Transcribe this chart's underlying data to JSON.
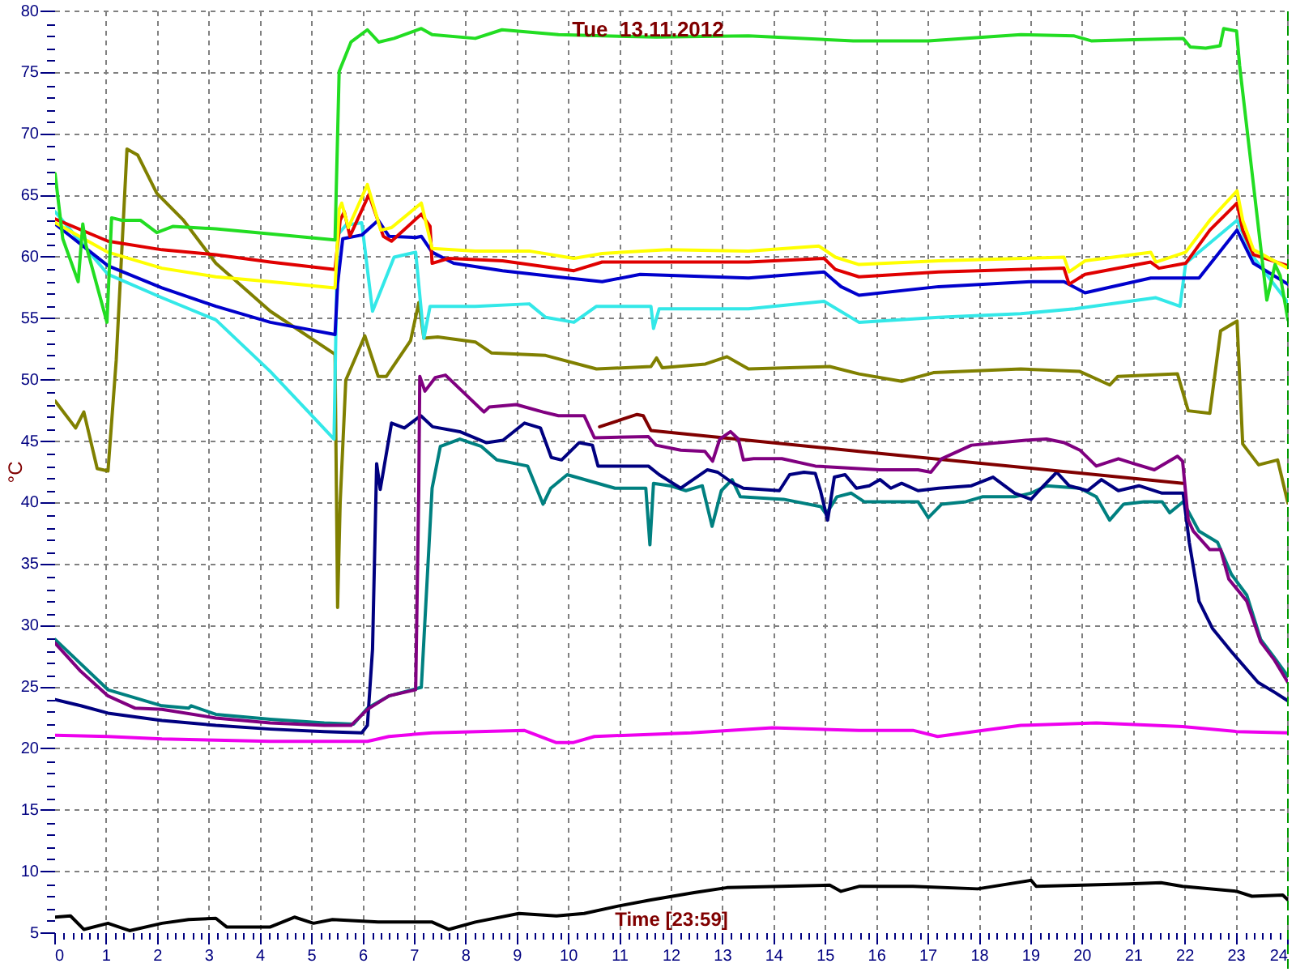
{
  "chart_data": {
    "type": "line",
    "title": "Tue  13.11.2012",
    "xlabel": "Time [23:59]",
    "ylabel": "°C",
    "xlim": [
      0,
      24
    ],
    "ylim": [
      5,
      80
    ],
    "xticks": [
      0,
      {
        "value": 0.1667,
        "label": null
      },
      {
        "value": 0.3333,
        "label": null
      },
      {
        "value": 0.5,
        "label": null
      },
      {
        "value": 0.6667,
        "label": null
      },
      {
        "value": 0.8333,
        "label": null
      },
      1,
      {
        "value": 1.1667,
        "label": null
      },
      {
        "value": 1.3333,
        "label": null
      },
      {
        "value": 1.5,
        "label": null
      },
      {
        "value": 1.6667,
        "label": null
      },
      {
        "value": 1.8333,
        "label": null
      },
      2,
      {
        "value": 2.1667,
        "label": null
      },
      {
        "value": 2.3333,
        "label": null
      },
      {
        "value": 2.5,
        "label": null
      },
      {
        "value": 2.6667,
        "label": null
      },
      {
        "value": 2.8333,
        "label": null
      },
      3,
      {
        "value": 3.1667,
        "label": null
      },
      {
        "value": 3.3333,
        "label": null
      },
      {
        "value": 3.5,
        "label": null
      },
      {
        "value": 3.6667,
        "label": null
      },
      {
        "value": 3.8333,
        "label": null
      },
      4,
      {
        "value": 4.1667,
        "label": null
      },
      {
        "value": 4.3333,
        "label": null
      },
      {
        "value": 4.5,
        "label": null
      },
      {
        "value": 4.6667,
        "label": null
      },
      {
        "value": 4.8333,
        "label": null
      },
      5,
      {
        "value": 5.1667,
        "label": null
      },
      {
        "value": 5.3333,
        "label": null
      },
      {
        "value": 5.5,
        "label": null
      },
      {
        "value": 5.6667,
        "label": null
      },
      {
        "value": 5.8333,
        "label": null
      },
      6,
      {
        "value": 6.1667,
        "label": null
      },
      {
        "value": 6.3333,
        "label": null
      },
      {
        "value": 6.5,
        "label": null
      },
      {
        "value": 6.6667,
        "label": null
      },
      {
        "value": 6.8333,
        "label": null
      },
      7,
      {
        "value": 7.1667,
        "label": null
      },
      {
        "value": 7.3333,
        "label": null
      },
      {
        "value": 7.5,
        "label": null
      },
      {
        "value": 7.6667,
        "label": null
      },
      {
        "value": 7.8333,
        "label": null
      },
      8,
      {
        "value": 8.1667,
        "label": null
      },
      {
        "value": 8.3333,
        "label": null
      },
      {
        "value": 8.5,
        "label": null
      },
      {
        "value": 8.6667,
        "label": null
      },
      {
        "value": 8.8333,
        "label": null
      },
      9,
      {
        "value": 9.1667,
        "label": null
      },
      {
        "value": 9.3333,
        "label": null
      },
      {
        "value": 9.5,
        "label": null
      },
      {
        "value": 9.6667,
        "label": null
      },
      {
        "value": 9.8333,
        "label": null
      },
      10,
      {
        "value": 10.1667,
        "label": null
      },
      {
        "value": 10.3333,
        "label": null
      },
      {
        "value": 10.5,
        "label": null
      },
      {
        "value": 10.6667,
        "label": null
      },
      {
        "value": 10.8333,
        "label": null
      },
      11,
      {
        "value": 11.1667,
        "label": null
      },
      {
        "value": 11.3333,
        "label": null
      },
      {
        "value": 11.5,
        "label": null
      },
      {
        "value": 11.6667,
        "label": null
      },
      {
        "value": 11.8333,
        "label": null
      },
      12,
      {
        "value": 12.1667,
        "label": null
      },
      {
        "value": 12.3333,
        "label": null
      },
      {
        "value": 12.5,
        "label": null
      },
      {
        "value": 12.6667,
        "label": null
      },
      {
        "value": 12.8333,
        "label": null
      },
      13,
      {
        "value": 13.1667,
        "label": null
      },
      {
        "value": 13.3333,
        "label": null
      },
      {
        "value": 13.5,
        "label": null
      },
      {
        "value": 13.6667,
        "label": null
      },
      {
        "value": 13.8333,
        "label": null
      },
      14,
      {
        "value": 14.1667,
        "label": null
      },
      {
        "value": 14.3333,
        "label": null
      },
      {
        "value": 14.5,
        "label": null
      },
      {
        "value": 14.6667,
        "label": null
      },
      {
        "value": 14.8333,
        "label": null
      },
      15,
      {
        "value": 15.1667,
        "label": null
      },
      {
        "value": 15.3333,
        "label": null
      },
      {
        "value": 15.5,
        "label": null
      },
      {
        "value": 15.6667,
        "label": null
      },
      {
        "value": 15.8333,
        "label": null
      },
      16,
      {
        "value": 16.1667,
        "label": null
      },
      {
        "value": 16.3333,
        "label": null
      },
      {
        "value": 16.5,
        "label": null
      },
      {
        "value": 16.6667,
        "label": null
      },
      {
        "value": 16.8333,
        "label": null
      },
      17,
      {
        "value": 17.1667,
        "label": null
      },
      {
        "value": 17.3333,
        "label": null
      },
      {
        "value": 17.5,
        "label": null
      },
      {
        "value": 17.6667,
        "label": null
      },
      {
        "value": 17.8333,
        "label": null
      },
      18,
      {
        "value": 18.1667,
        "label": null
      },
      {
        "value": 18.3333,
        "label": null
      },
      {
        "value": 18.5,
        "label": null
      },
      {
        "value": 18.6667,
        "label": null
      },
      {
        "value": 18.8333,
        "label": null
      },
      19,
      {
        "value": 19.1667,
        "label": null
      },
      {
        "value": 19.3333,
        "label": null
      },
      {
        "value": 19.5,
        "label": null
      },
      {
        "value": 19.6667,
        "label": null
      },
      {
        "value": 19.8333,
        "label": null
      },
      20,
      {
        "value": 20.1667,
        "label": null
      },
      {
        "value": 20.3333,
        "label": null
      },
      {
        "value": 20.5,
        "label": null
      },
      {
        "value": 20.6667,
        "label": null
      },
      {
        "value": 20.8333,
        "label": null
      },
      21,
      {
        "value": 21.1667,
        "label": null
      },
      {
        "value": 21.3333,
        "label": null
      },
      {
        "value": 21.5,
        "label": null
      },
      {
        "value": 21.6667,
        "label": null
      },
      {
        "value": 21.8333,
        "label": null
      },
      22,
      {
        "value": 22.1667,
        "label": null
      },
      {
        "value": 22.3333,
        "label": null
      },
      {
        "value": 22.5,
        "label": null
      },
      {
        "value": 22.6667,
        "label": null
      },
      {
        "value": 22.8333,
        "label": null
      },
      23,
      {
        "value": 23.1667,
        "label": null
      },
      {
        "value": 23.3333,
        "label": null
      },
      {
        "value": 23.5,
        "label": null
      },
      {
        "value": 23.6667,
        "label": null
      },
      {
        "value": 23.8333,
        "label": null
      },
      24
    ],
    "yticks": [
      5,
      {
        "value": 6,
        "label": null
      },
      {
        "value": 7,
        "label": null
      },
      {
        "value": 8,
        "label": null
      },
      {
        "value": 9,
        "label": null
      },
      10,
      {
        "value": 11,
        "label": null
      },
      {
        "value": 12,
        "label": null
      },
      {
        "value": 13,
        "label": null
      },
      {
        "value": 14,
        "label": null
      },
      15,
      {
        "value": 16,
        "label": null
      },
      {
        "value": 17,
        "label": null
      },
      {
        "value": 18,
        "label": null
      },
      {
        "value": 19,
        "label": null
      },
      20,
      {
        "value": 21,
        "label": null
      },
      {
        "value": 22,
        "label": null
      },
      {
        "value": 23,
        "label": null
      },
      {
        "value": 24,
        "label": null
      },
      25,
      {
        "value": 26,
        "label": null
      },
      {
        "value": 27,
        "label": null
      },
      {
        "value": 28,
        "label": null
      },
      {
        "value": 29,
        "label": null
      },
      30,
      {
        "value": 31,
        "label": null
      },
      {
        "value": 32,
        "label": null
      },
      {
        "value": 33,
        "label": null
      },
      {
        "value": 34,
        "label": null
      },
      35,
      {
        "value": 36,
        "label": null
      },
      {
        "value": 37,
        "label": null
      },
      {
        "value": 38,
        "label": null
      },
      {
        "value": 39,
        "label": null
      },
      40,
      {
        "value": 41,
        "label": null
      },
      {
        "value": 42,
        "label": null
      },
      {
        "value": 43,
        "label": null
      },
      {
        "value": 44,
        "label": null
      },
      45,
      {
        "value": 46,
        "label": null
      },
      {
        "value": 47,
        "label": null
      },
      {
        "value": 48,
        "label": null
      },
      {
        "value": 49,
        "label": null
      },
      50,
      {
        "value": 51,
        "label": null
      },
      {
        "value": 52,
        "label": null
      },
      {
        "value": 53,
        "label": null
      },
      {
        "value": 54,
        "label": null
      },
      55,
      {
        "value": 56,
        "label": null
      },
      {
        "value": 57,
        "label": null
      },
      {
        "value": 58,
        "label": null
      },
      {
        "value": 59,
        "label": null
      },
      60,
      {
        "value": 61,
        "label": null
      },
      {
        "value": 62,
        "label": null
      },
      {
        "value": 63,
        "label": null
      },
      {
        "value": 64,
        "label": null
      },
      65,
      {
        "value": 66,
        "label": null
      },
      {
        "value": 67,
        "label": null
      },
      {
        "value": 68,
        "label": null
      },
      {
        "value": 69,
        "label": null
      },
      70,
      {
        "value": 71,
        "label": null
      },
      {
        "value": 72,
        "label": null
      },
      {
        "value": 73,
        "label": null
      },
      {
        "value": 74,
        "label": null
      },
      75,
      {
        "value": 76,
        "label": null
      },
      {
        "value": 77,
        "label": null
      },
      {
        "value": 78,
        "label": null
      },
      {
        "value": 79,
        "label": null
      },
      80
    ],
    "grid": true,
    "legend": false,
    "marker": "none",
    "line_style": "solid",
    "ref_lines": [
      {
        "axis": "x",
        "value": 24,
        "color": "#009900",
        "line_style": "dashed"
      }
    ],
    "series": [
      {
        "color": "#22dd22",
        "x": [
          0,
          0.15,
          0.45,
          0.54,
          0.6,
          1.01,
          1.1,
          1.3,
          1.66,
          1.98,
          2.29,
          3.13,
          4.19,
          5.45,
          5.53,
          5.76,
          6.08,
          6.3,
          6.6,
          7.13,
          7.34,
          8.18,
          8.7,
          9.8,
          11.7,
          13.5,
          15.54,
          17.0,
          18.8,
          19.84,
          20.17,
          21.0,
          21.96,
          22.1,
          22.4,
          22.68,
          22.75,
          23.0,
          23.06,
          23.59,
          23.75,
          23.85,
          24
        ],
        "values": [
          66.8,
          61.5,
          58.0,
          62.7,
          61.0,
          54.7,
          63.2,
          63.0,
          63.0,
          62.0,
          62.5,
          62.3,
          61.9,
          61.4,
          75.1,
          77.5,
          78.5,
          77.5,
          77.8,
          78.6,
          78.1,
          77.8,
          78.5,
          78.1,
          77.9,
          78.0,
          77.6,
          77.6,
          78.1,
          78.0,
          77.6,
          77.7,
          77.8,
          77.1,
          77.0,
          77.2,
          78.6,
          78.4,
          75.6,
          56.5,
          59.4,
          58.5,
          54.9
        ]
      },
      {
        "color": "#ffff00",
        "x": [
          0,
          1.03,
          2.08,
          3.13,
          4.19,
          5.45,
          5.53,
          5.58,
          5.71,
          6.08,
          6.34,
          6.55,
          7.13,
          7.34,
          8.18,
          9.23,
          10.1,
          10.65,
          11.92,
          13.5,
          14.87,
          15.19,
          15.65,
          17.2,
          19.64,
          19.74,
          20.05,
          21.33,
          21.43,
          22.01,
          22.48,
          23.01,
          23.12,
          23.33,
          24
        ],
        "values": [
          62.8,
          60.4,
          59.1,
          58.4,
          58.0,
          57.5,
          63.9,
          64.4,
          62.4,
          65.9,
          62.2,
          62.4,
          64.4,
          60.7,
          60.5,
          60.5,
          59.9,
          60.3,
          60.6,
          60.5,
          60.9,
          60.0,
          59.4,
          59.7,
          60.0,
          58.8,
          59.7,
          60.4,
          59.6,
          60.4,
          63.0,
          65.4,
          63.0,
          60.6,
          59.1
        ]
      },
      {
        "color": "#e00000",
        "x": [
          0,
          1.03,
          2.08,
          3.13,
          4.19,
          5.45,
          5.55,
          5.63,
          5.74,
          6.11,
          6.39,
          6.55,
          7.13,
          7.3,
          7.34,
          7.66,
          8.71,
          10.1,
          10.65,
          11.92,
          13.5,
          14.97,
          15.19,
          15.65,
          17.2,
          19.64,
          19.74,
          20.05,
          21.33,
          21.49,
          22.01,
          22.48,
          23.01,
          23.12,
          23.33,
          24
        ],
        "values": [
          63.1,
          61.3,
          60.6,
          60.2,
          59.6,
          59.0,
          63.0,
          63.7,
          61.7,
          65.1,
          61.7,
          61.3,
          63.5,
          62.5,
          59.5,
          59.9,
          59.7,
          58.9,
          59.6,
          59.6,
          59.6,
          59.9,
          59.0,
          58.4,
          58.8,
          59.1,
          57.8,
          58.6,
          59.6,
          59.1,
          59.5,
          62.2,
          64.4,
          62.2,
          60.2,
          59.3
        ]
      },
      {
        "color": "#0000cc",
        "x": [
          0,
          1.03,
          2.08,
          3.13,
          4.19,
          5.45,
          5.5,
          5.6,
          5.97,
          6.29,
          6.5,
          7.02,
          7.13,
          7.34,
          7.76,
          8.71,
          9.76,
          10.65,
          11.39,
          13.5,
          14.97,
          15.3,
          15.65,
          17.2,
          19.0,
          19.64,
          20.05,
          21.33,
          22.27,
          23.01,
          23.33,
          24
        ],
        "values": [
          62.7,
          59.3,
          57.5,
          56.0,
          54.7,
          53.7,
          57.8,
          61.5,
          61.8,
          63.0,
          61.7,
          61.6,
          61.7,
          60.4,
          59.5,
          58.9,
          58.4,
          58.0,
          58.6,
          58.3,
          58.8,
          57.6,
          56.9,
          57.6,
          58.0,
          58.0,
          57.1,
          58.3,
          58.3,
          62.2,
          59.5,
          57.8
        ]
      },
      {
        "color": "#33e8e8",
        "x": [
          0,
          1.03,
          2.08,
          3.13,
          4.19,
          5.43,
          5.5,
          5.66,
          5.97,
          6.18,
          6.6,
          7.02,
          7.18,
          7.3,
          7.45,
          8.18,
          9.23,
          9.55,
          10.1,
          10.54,
          11.6,
          11.65,
          11.76,
          13.5,
          14.97,
          15.65,
          17.2,
          18.8,
          19.85,
          21.43,
          21.9,
          22.01,
          23.01,
          23.33,
          24
        ],
        "values": [
          63.7,
          58.6,
          56.7,
          54.9,
          50.7,
          45.2,
          61.8,
          62.6,
          62.8,
          55.6,
          60.0,
          60.4,
          53.4,
          56.0,
          56.0,
          56.0,
          56.2,
          55.1,
          54.7,
          56.0,
          56.0,
          54.2,
          55.8,
          55.8,
          56.4,
          54.7,
          55.1,
          55.4,
          55.8,
          56.7,
          56.0,
          59.5,
          63.0,
          60.0,
          56.3
        ]
      },
      {
        "color": "#808000",
        "x": [
          0,
          0.4,
          0.56,
          0.82,
          1.03,
          1.19,
          1.4,
          1.61,
          1.98,
          2.5,
          3.13,
          4.19,
          5.45,
          5.5,
          5.55,
          5.66,
          6.03,
          6.29,
          6.45,
          6.92,
          7.08,
          7.18,
          7.45,
          8.18,
          8.5,
          9.55,
          10.54,
          11.6,
          11.71,
          11.82,
          12.66,
          13.08,
          13.5,
          15.08,
          15.65,
          16.48,
          17.1,
          18.8,
          19.95,
          20.53,
          20.69,
          21.85,
          22.06,
          22.48,
          22.69,
          23.01,
          23.12,
          23.43,
          23.8,
          24
        ],
        "values": [
          48.3,
          46.1,
          47.4,
          42.8,
          42.6,
          51.6,
          68.8,
          68.3,
          65.2,
          63.0,
          59.5,
          55.6,
          52.1,
          31.5,
          40.0,
          50.0,
          53.6,
          50.3,
          50.3,
          53.2,
          56.3,
          53.4,
          53.5,
          53.1,
          52.2,
          52.0,
          50.9,
          51.1,
          51.8,
          51.0,
          51.3,
          51.9,
          50.9,
          51.1,
          50.5,
          49.9,
          50.6,
          50.9,
          50.7,
          49.6,
          50.3,
          50.5,
          47.5,
          47.3,
          54.0,
          54.8,
          44.8,
          43.1,
          43.5,
          40.0
        ]
      },
      {
        "color": "#800080",
        "x": [
          0,
          0.5,
          1.03,
          1.56,
          2.08,
          3.13,
          4.19,
          5.24,
          5.76,
          6.08,
          6.5,
          7.02,
          7.08,
          7.1,
          7.2,
          7.4,
          7.6,
          8.35,
          8.45,
          8.98,
          9.5,
          9.8,
          10.3,
          10.5,
          11.55,
          11.7,
          12.18,
          12.65,
          12.8,
          12.94,
          13.15,
          13.3,
          13.4,
          13.6,
          14.15,
          14.8,
          16.05,
          16.8,
          17.05,
          17.26,
          17.84,
          18.9,
          19.3,
          19.65,
          19.95,
          20.27,
          20.7,
          21.0,
          21.4,
          21.85,
          21.95,
          22.06,
          22.16,
          22.48,
          22.69,
          22.85,
          23.2,
          23.47,
          23.74,
          24
        ],
        "values": [
          28.6,
          26.3,
          24.3,
          23.3,
          23.2,
          22.5,
          22.1,
          21.9,
          21.9,
          23.2,
          24.3,
          24.8,
          41.0,
          50.3,
          49.1,
          50.2,
          50.4,
          47.4,
          47.8,
          48.0,
          47.4,
          47.1,
          47.1,
          45.3,
          45.4,
          44.7,
          44.3,
          44.2,
          43.4,
          45.2,
          45.8,
          45.2,
          43.5,
          43.6,
          43.6,
          43.0,
          42.7,
          42.7,
          42.5,
          43.6,
          44.7,
          45.1,
          45.2,
          44.9,
          44.3,
          43.0,
          43.6,
          43.2,
          42.7,
          43.8,
          43.4,
          38.6,
          37.7,
          36.2,
          36.2,
          33.8,
          32.0,
          28.7,
          27.2,
          25.4
        ]
      },
      {
        "color": "#800000",
        "x": [
          10.6,
          11.33,
          11.45,
          11.6,
          15.65,
          21.96
        ],
        "values": [
          46.2,
          47.2,
          47.1,
          45.9,
          44.2,
          41.6
        ]
      },
      {
        "color": "#000080",
        "x": [
          0,
          0.5,
          1.03,
          2.08,
          3.13,
          4.19,
          5.24,
          5.97,
          6.08,
          6.18,
          6.26,
          6.33,
          6.55,
          6.8,
          7.12,
          7.35,
          7.88,
          8.4,
          8.72,
          9.14,
          9.45,
          9.66,
          9.86,
          10.2,
          10.46,
          10.57,
          11.03,
          11.55,
          11.76,
          12.18,
          12.7,
          12.9,
          13.2,
          13.4,
          14.1,
          14.3,
          14.58,
          14.8,
          14.9,
          15.04,
          15.17,
          15.38,
          15.6,
          15.85,
          16.06,
          16.27,
          16.48,
          16.8,
          17.2,
          17.84,
          18.26,
          18.68,
          19.0,
          19.2,
          19.5,
          19.74,
          20.1,
          20.37,
          20.7,
          21.1,
          21.55,
          21.96,
          22.08,
          22.27,
          22.53,
          22.9,
          23.42,
          23.74,
          24
        ],
        "values": [
          24.0,
          23.5,
          22.9,
          22.3,
          21.9,
          21.6,
          21.4,
          21.3,
          21.9,
          28.1,
          43.2,
          41.1,
          46.5,
          46.1,
          47.1,
          46.2,
          45.8,
          44.9,
          45.1,
          46.5,
          46.1,
          43.7,
          43.5,
          44.9,
          44.7,
          43.0,
          43.0,
          43.0,
          42.3,
          41.2,
          42.7,
          42.5,
          41.6,
          41.2,
          41.0,
          42.3,
          42.5,
          42.4,
          41.0,
          38.6,
          42.1,
          42.3,
          41.2,
          41.4,
          41.9,
          41.2,
          41.6,
          41.0,
          41.2,
          41.4,
          42.1,
          40.8,
          40.3,
          41.2,
          42.5,
          41.4,
          41.0,
          41.9,
          41.0,
          41.4,
          40.8,
          40.8,
          36.8,
          32.0,
          29.8,
          27.9,
          25.4,
          24.6,
          23.9
        ]
      },
      {
        "color": "#008080",
        "x": [
          0,
          1.03,
          2.08,
          2.6,
          2.65,
          3.13,
          4.19,
          5.24,
          5.81,
          6.08,
          6.5,
          7.13,
          7.34,
          7.5,
          7.88,
          8.3,
          8.6,
          9.2,
          9.5,
          9.65,
          9.97,
          10.9,
          11.5,
          11.58,
          11.65,
          11.97,
          12.28,
          12.6,
          12.79,
          12.97,
          13.18,
          13.34,
          14.18,
          14.91,
          15.01,
          15.22,
          15.5,
          15.75,
          16.8,
          17.0,
          17.26,
          17.73,
          18.05,
          18.68,
          19.0,
          19.3,
          19.95,
          20.27,
          20.53,
          20.8,
          21.2,
          21.55,
          21.7,
          21.96,
          22.27,
          22.63,
          22.9,
          23.2,
          23.47,
          23.74,
          24
        ],
        "values": [
          28.9,
          24.8,
          23.5,
          23.3,
          23.5,
          22.8,
          22.4,
          22.1,
          22.0,
          23.3,
          24.3,
          25.0,
          41.2,
          44.6,
          45.2,
          44.6,
          43.5,
          43.0,
          39.9,
          41.2,
          42.3,
          41.2,
          41.2,
          36.6,
          41.6,
          41.4,
          41.0,
          41.4,
          38.1,
          41.0,
          41.9,
          40.5,
          40.3,
          39.7,
          39.1,
          40.5,
          40.8,
          40.1,
          40.1,
          38.8,
          39.9,
          40.1,
          40.5,
          40.5,
          40.8,
          41.4,
          41.2,
          40.5,
          38.6,
          39.9,
          40.1,
          40.1,
          39.2,
          40.1,
          37.7,
          36.8,
          34.2,
          32.5,
          28.9,
          27.4,
          25.9
        ]
      },
      {
        "color": "#ee00ee",
        "x": [
          0,
          1.03,
          2.08,
          3.13,
          4.19,
          5.24,
          6.08,
          6.5,
          7.34,
          9.13,
          9.76,
          10.08,
          10.5,
          12.38,
          13.96,
          15.65,
          16.7,
          17.18,
          18.8,
          20.27,
          21.95,
          23.0,
          24
        ],
        "values": [
          21.1,
          21.0,
          20.8,
          20.7,
          20.6,
          20.6,
          20.6,
          21.0,
          21.3,
          21.5,
          20.5,
          20.5,
          21.0,
          21.3,
          21.7,
          21.5,
          21.5,
          21.0,
          21.9,
          22.1,
          21.8,
          21.4,
          21.3
        ]
      },
      {
        "color": "#000000",
        "x": [
          0,
          0.3,
          0.56,
          1.03,
          1.45,
          2.08,
          2.6,
          3.13,
          3.34,
          4.19,
          4.66,
          5.03,
          5.4,
          6.29,
          7.34,
          7.66,
          8.18,
          9.03,
          9.76,
          10.3,
          10.96,
          11.6,
          12.44,
          13.08,
          14.13,
          15.08,
          15.3,
          15.65,
          16.7,
          17.96,
          19.0,
          19.1,
          20.9,
          21.53,
          21.95,
          23.0,
          23.3,
          23.9,
          24
        ],
        "values": [
          6.3,
          6.4,
          5.3,
          5.8,
          5.2,
          5.8,
          6.1,
          6.2,
          5.5,
          5.5,
          6.3,
          5.8,
          6.1,
          5.9,
          5.9,
          5.3,
          5.9,
          6.6,
          6.4,
          6.6,
          7.2,
          7.7,
          8.3,
          8.7,
          8.8,
          8.9,
          8.4,
          8.8,
          8.8,
          8.6,
          9.3,
          8.8,
          9.0,
          9.1,
          8.8,
          8.4,
          8.0,
          8.1,
          7.7
        ]
      }
    ]
  }
}
